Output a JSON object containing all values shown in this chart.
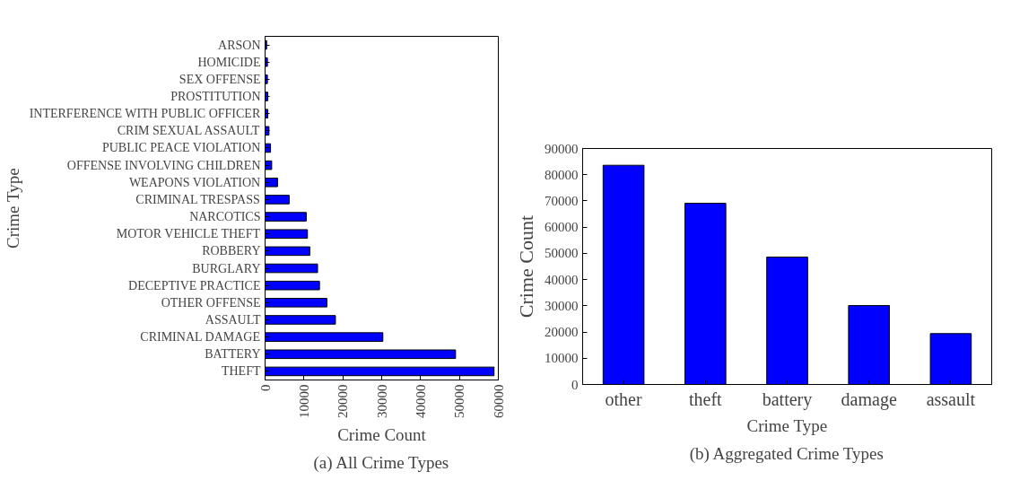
{
  "chart_data": [
    {
      "type": "bar",
      "orientation": "horizontal",
      "ylabel": "Crime Type",
      "xlabel": "Crime Count",
      "categories": [
        "ARSON",
        "HOMICIDE",
        "SEX OFFENSE",
        "PROSTITUTION",
        "INTERFERENCE WITH PUBLIC OFFICER",
        "CRIM SEXUAL ASSAULT",
        "PUBLIC PEACE VIOLATION",
        "OFFENSE INVOLVING CHILDREN",
        "WEAPONS VIOLATION",
        "CRIMINAL TRESPASS",
        "NARCOTICS",
        "MOTOR VEHICLE THEFT",
        "ROBBERY",
        "BURGLARY",
        "DECEPTIVE PRACTICE",
        "OTHER OFFENSE",
        "ASSAULT",
        "CRIMINAL DAMAGE",
        "BATTERY",
        "THEFT"
      ],
      "values": [
        400,
        600,
        600,
        700,
        700,
        1000,
        1400,
        1700,
        3200,
        6200,
        10600,
        10900,
        11500,
        13500,
        14000,
        15900,
        18100,
        30300,
        49000,
        58900
      ],
      "color": "#0000ff",
      "xlim": [
        0,
        60000
      ],
      "xticks": [
        0,
        10000,
        20000,
        30000,
        40000,
        50000,
        60000
      ],
      "grid": false,
      "annotations": [
        "(a) All Crime Types"
      ]
    },
    {
      "type": "bar",
      "xlabel": "Crime Type",
      "ylabel": "Crime Count",
      "categories": [
        "other",
        "theft",
        "battery",
        "damage",
        "assault"
      ],
      "values": [
        83600,
        69100,
        48600,
        30100,
        19400
      ],
      "color": "#0000ff",
      "ylim": [
        0,
        90000
      ],
      "yticks": [
        0,
        10000,
        20000,
        30000,
        40000,
        50000,
        60000,
        70000,
        80000,
        90000
      ],
      "grid": false,
      "annotations": [
        "(b) Aggregated Crime Types"
      ]
    }
  ]
}
